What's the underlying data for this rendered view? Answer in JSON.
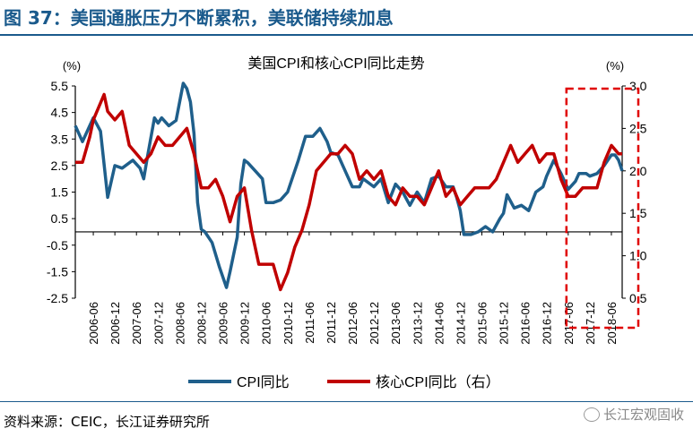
{
  "figure": {
    "title": "图 37：美国通胀压力不断累积，美联储持续加息",
    "source": "资料来源：CEIC，长江证券研究所",
    "watermark": "长江宏观固收"
  },
  "colors": {
    "cpi": "#1f5f8b",
    "core": "#c00000",
    "highlight": "#e00000",
    "title": "#1a5a8c"
  },
  "chart_data": {
    "type": "line",
    "title": "美国CPI和核心CPI同比走势",
    "ylabel_left": "(%)",
    "ylabel_right": "(%)",
    "ylim_left": [
      -2.5,
      5.5
    ],
    "ylim_right": [
      0.5,
      3.0
    ],
    "yticks_left": [
      "5.5",
      "4.5",
      "3.5",
      "2.5",
      "1.5",
      "0.5",
      "-0.5",
      "-1.5",
      "-2.5"
    ],
    "yticks_right": [
      "3.0",
      "2.5",
      "2.0",
      "1.5",
      "1.0",
      "0.5"
    ],
    "xticks": [
      "2006-06",
      "2006-12",
      "2007-06",
      "2007-12",
      "2008-06",
      "2008-12",
      "2009-06",
      "2009-12",
      "2010-06",
      "2010-12",
      "2011-06",
      "2011-12",
      "2012-06",
      "2012-12",
      "2013-06",
      "2013-12",
      "2014-06",
      "2014-12",
      "2015-06",
      "2015-12",
      "2016-06",
      "2016-12",
      "2017-06",
      "2017-12",
      "2018-06"
    ],
    "x_start": "2006-01",
    "x_end": "2018-09",
    "highlight_range": [
      "2017-07",
      "2018-09"
    ],
    "series": [
      {
        "name": "CPI同比",
        "axis": "left",
        "keypoints": [
          [
            "2006-01",
            4.0
          ],
          [
            "2006-03",
            3.4
          ],
          [
            "2006-06",
            4.3
          ],
          [
            "2006-08",
            3.8
          ],
          [
            "2006-10",
            1.3
          ],
          [
            "2006-12",
            2.5
          ],
          [
            "2007-02",
            2.4
          ],
          [
            "2007-05",
            2.7
          ],
          [
            "2007-07",
            2.4
          ],
          [
            "2007-08",
            2.0
          ],
          [
            "2007-09",
            2.8
          ],
          [
            "2007-11",
            4.3
          ],
          [
            "2007-12",
            4.1
          ],
          [
            "2008-01",
            4.3
          ],
          [
            "2008-03",
            4.0
          ],
          [
            "2008-05",
            4.2
          ],
          [
            "2008-07",
            5.6
          ],
          [
            "2008-08",
            5.4
          ],
          [
            "2008-09",
            4.9
          ],
          [
            "2008-10",
            3.7
          ],
          [
            "2008-11",
            1.1
          ],
          [
            "2008-12",
            0.1
          ],
          [
            "2009-01",
            0.0
          ],
          [
            "2009-03",
            -0.4
          ],
          [
            "2009-05",
            -1.3
          ],
          [
            "2009-07",
            -2.1
          ],
          [
            "2009-08",
            -1.5
          ],
          [
            "2009-10",
            -0.2
          ],
          [
            "2009-11",
            1.8
          ],
          [
            "2009-12",
            2.7
          ],
          [
            "2010-01",
            2.6
          ],
          [
            "2010-03",
            2.3
          ],
          [
            "2010-05",
            2.0
          ],
          [
            "2010-06",
            1.1
          ],
          [
            "2010-08",
            1.1
          ],
          [
            "2010-10",
            1.2
          ],
          [
            "2010-12",
            1.5
          ],
          [
            "2011-03",
            2.7
          ],
          [
            "2011-05",
            3.6
          ],
          [
            "2011-07",
            3.6
          ],
          [
            "2011-09",
            3.9
          ],
          [
            "2011-11",
            3.4
          ],
          [
            "2011-12",
            3.0
          ],
          [
            "2012-02",
            2.9
          ],
          [
            "2012-04",
            2.3
          ],
          [
            "2012-06",
            1.7
          ],
          [
            "2012-08",
            1.7
          ],
          [
            "2012-09",
            2.0
          ],
          [
            "2012-11",
            1.8
          ],
          [
            "2012-12",
            1.7
          ],
          [
            "2013-02",
            2.0
          ],
          [
            "2013-04",
            1.1
          ],
          [
            "2013-06",
            1.8
          ],
          [
            "2013-08",
            1.5
          ],
          [
            "2013-10",
            1.0
          ],
          [
            "2013-12",
            1.5
          ],
          [
            "2014-02",
            1.1
          ],
          [
            "2014-04",
            2.0
          ],
          [
            "2014-06",
            2.1
          ],
          [
            "2014-08",
            1.7
          ],
          [
            "2014-10",
            1.7
          ],
          [
            "2014-11",
            1.3
          ],
          [
            "2014-12",
            0.8
          ],
          [
            "2015-01",
            -0.1
          ],
          [
            "2015-03",
            -0.1
          ],
          [
            "2015-05",
            0.0
          ],
          [
            "2015-07",
            0.2
          ],
          [
            "2015-09",
            0.0
          ],
          [
            "2015-11",
            0.5
          ],
          [
            "2015-12",
            0.7
          ],
          [
            "2016-01",
            1.4
          ],
          [
            "2016-03",
            0.9
          ],
          [
            "2016-05",
            1.0
          ],
          [
            "2016-07",
            0.8
          ],
          [
            "2016-09",
            1.5
          ],
          [
            "2016-11",
            1.7
          ],
          [
            "2016-12",
            2.1
          ],
          [
            "2017-02",
            2.7
          ],
          [
            "2017-04",
            2.2
          ],
          [
            "2017-06",
            1.6
          ],
          [
            "2017-08",
            1.9
          ],
          [
            "2017-09",
            2.2
          ],
          [
            "2017-11",
            2.2
          ],
          [
            "2017-12",
            2.1
          ],
          [
            "2018-02",
            2.2
          ],
          [
            "2018-04",
            2.5
          ],
          [
            "2018-06",
            2.9
          ],
          [
            "2018-07",
            2.9
          ],
          [
            "2018-08",
            2.7
          ],
          [
            "2018-09",
            2.3
          ]
        ]
      },
      {
        "name": "核心CPI同比（右）",
        "axis": "right",
        "keypoints": [
          [
            "2006-01",
            2.1
          ],
          [
            "2006-03",
            2.1
          ],
          [
            "2006-05",
            2.4
          ],
          [
            "2006-06",
            2.6
          ],
          [
            "2006-08",
            2.8
          ],
          [
            "2006-09",
            2.9
          ],
          [
            "2006-10",
            2.7
          ],
          [
            "2006-12",
            2.6
          ],
          [
            "2007-02",
            2.7
          ],
          [
            "2007-04",
            2.3
          ],
          [
            "2007-06",
            2.2
          ],
          [
            "2007-08",
            2.1
          ],
          [
            "2007-10",
            2.2
          ],
          [
            "2007-12",
            2.4
          ],
          [
            "2008-02",
            2.3
          ],
          [
            "2008-04",
            2.3
          ],
          [
            "2008-06",
            2.4
          ],
          [
            "2008-08",
            2.5
          ],
          [
            "2008-10",
            2.2
          ],
          [
            "2008-12",
            1.8
          ],
          [
            "2009-02",
            1.8
          ],
          [
            "2009-04",
            1.9
          ],
          [
            "2009-06",
            1.7
          ],
          [
            "2009-08",
            1.4
          ],
          [
            "2009-10",
            1.7
          ],
          [
            "2009-12",
            1.8
          ],
          [
            "2010-02",
            1.3
          ],
          [
            "2010-04",
            0.9
          ],
          [
            "2010-06",
            0.9
          ],
          [
            "2010-08",
            0.9
          ],
          [
            "2010-10",
            0.6
          ],
          [
            "2010-12",
            0.8
          ],
          [
            "2011-02",
            1.1
          ],
          [
            "2011-04",
            1.3
          ],
          [
            "2011-06",
            1.6
          ],
          [
            "2011-08",
            2.0
          ],
          [
            "2011-10",
            2.1
          ],
          [
            "2011-12",
            2.2
          ],
          [
            "2012-02",
            2.2
          ],
          [
            "2012-04",
            2.3
          ],
          [
            "2012-06",
            2.2
          ],
          [
            "2012-08",
            1.9
          ],
          [
            "2012-10",
            2.0
          ],
          [
            "2012-12",
            1.9
          ],
          [
            "2013-02",
            2.0
          ],
          [
            "2013-04",
            1.7
          ],
          [
            "2013-06",
            1.6
          ],
          [
            "2013-08",
            1.8
          ],
          [
            "2013-10",
            1.7
          ],
          [
            "2013-12",
            1.7
          ],
          [
            "2014-02",
            1.6
          ],
          [
            "2014-04",
            1.8
          ],
          [
            "2014-06",
            2.0
          ],
          [
            "2014-08",
            1.7
          ],
          [
            "2014-10",
            1.8
          ],
          [
            "2014-12",
            1.6
          ],
          [
            "2015-02",
            1.7
          ],
          [
            "2015-04",
            1.8
          ],
          [
            "2015-06",
            1.8
          ],
          [
            "2015-08",
            1.8
          ],
          [
            "2015-10",
            1.9
          ],
          [
            "2015-12",
            2.1
          ],
          [
            "2016-02",
            2.3
          ],
          [
            "2016-04",
            2.1
          ],
          [
            "2016-06",
            2.2
          ],
          [
            "2016-08",
            2.3
          ],
          [
            "2016-10",
            2.1
          ],
          [
            "2016-12",
            2.2
          ],
          [
            "2017-02",
            2.2
          ],
          [
            "2017-04",
            1.9
          ],
          [
            "2017-06",
            1.7
          ],
          [
            "2017-08",
            1.7
          ],
          [
            "2017-10",
            1.8
          ],
          [
            "2017-12",
            1.8
          ],
          [
            "2018-02",
            1.8
          ],
          [
            "2018-04",
            2.1
          ],
          [
            "2018-06",
            2.3
          ],
          [
            "2018-08",
            2.2
          ],
          [
            "2018-09",
            2.2
          ]
        ]
      }
    ],
    "legend": [
      "CPI同比",
      "核心CPI同比（右）"
    ]
  }
}
